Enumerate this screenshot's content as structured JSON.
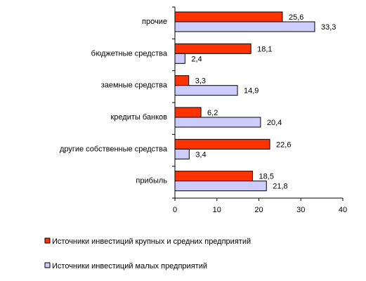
{
  "chart_data": {
    "type": "bar",
    "orientation": "horizontal",
    "categories": [
      "прочие",
      "бюджетные средства",
      "заемные средства",
      "кредиты банков",
      "другие собственные средства",
      "прибыль"
    ],
    "series": [
      {
        "name": "Источники инвестиций крупных и средних предприятий",
        "values": [
          25.6,
          18.1,
          3.3,
          6.2,
          22.6,
          18.5
        ],
        "labels": [
          "25,6",
          "18,1",
          "3,3",
          "6,2",
          "22,6",
          "18,5"
        ],
        "color": "#ff3300"
      },
      {
        "name": "Источники инвестиций малых предприятий",
        "values": [
          33.3,
          2.4,
          14.9,
          20.4,
          3.4,
          21.8
        ],
        "labels": [
          "33,3",
          "2,4",
          "14,9",
          "20,4",
          "3,4",
          "21,8"
        ],
        "color": "#ccccff"
      }
    ],
    "xlim": [
      0,
      40
    ],
    "xticks": [
      "0",
      "10",
      "20",
      "30",
      "40"
    ],
    "grid": false,
    "legend_position": "bottom",
    "title": "",
    "xlabel": "",
    "ylabel": ""
  }
}
